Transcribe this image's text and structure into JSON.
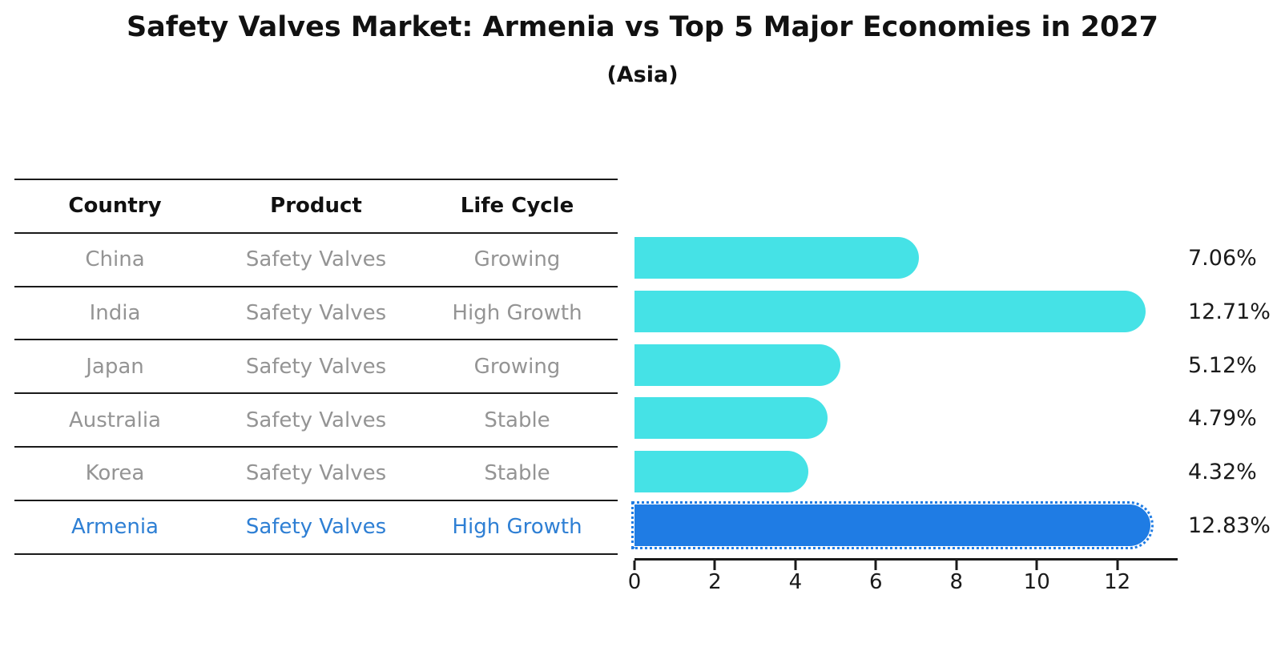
{
  "title": "Safety Valves Market: Armenia vs Top 5 Major Economies in 2027",
  "subtitle": "(Asia)",
  "table": {
    "headers": [
      "Country",
      "Product",
      "Life Cycle"
    ],
    "rows": [
      {
        "country": "China",
        "product": "Safety Valves",
        "life_cycle": "Growing",
        "highlight": false
      },
      {
        "country": "India",
        "product": "Safety Valves",
        "life_cycle": "High Growth",
        "highlight": false
      },
      {
        "country": "Japan",
        "product": "Safety Valves",
        "life_cycle": "Growing",
        "highlight": false
      },
      {
        "country": "Australia",
        "product": "Safety Valves",
        "life_cycle": "Stable",
        "highlight": false
      },
      {
        "country": "Korea",
        "product": "Safety Valves",
        "life_cycle": "Stable",
        "highlight": false
      },
      {
        "country": "Armenia",
        "product": "Safety Valves",
        "life_cycle": "High Growth",
        "highlight": true
      }
    ]
  },
  "chart_data": {
    "type": "bar",
    "orientation": "horizontal",
    "title": "Safety Valves Market: Armenia vs Top 5 Major Economies in 2027",
    "subtitle": "(Asia)",
    "categories": [
      "China",
      "India",
      "Japan",
      "Australia",
      "Korea",
      "Armenia"
    ],
    "values": [
      7.06,
      12.71,
      5.12,
      4.79,
      4.32,
      12.83
    ],
    "value_labels": [
      "7.06%",
      "12.71%",
      "5.12%",
      "4.79%",
      "4.32%",
      "12.83%"
    ],
    "highlight_index": 5,
    "highlight_edge_style": "dotted",
    "xlabel": "",
    "ylabel": "",
    "xlim": [
      0,
      13.5
    ],
    "xticks": [
      0,
      2,
      4,
      6,
      8,
      10,
      12
    ],
    "grid": false,
    "legend": "none"
  },
  "colors": {
    "bar_cyan": "#45E2E6",
    "bar_blue": "#1F7CE4",
    "accent_blue_text": "#2E7FD4",
    "cell_gray": "#949494",
    "axis_black": "#1a1a1a"
  }
}
